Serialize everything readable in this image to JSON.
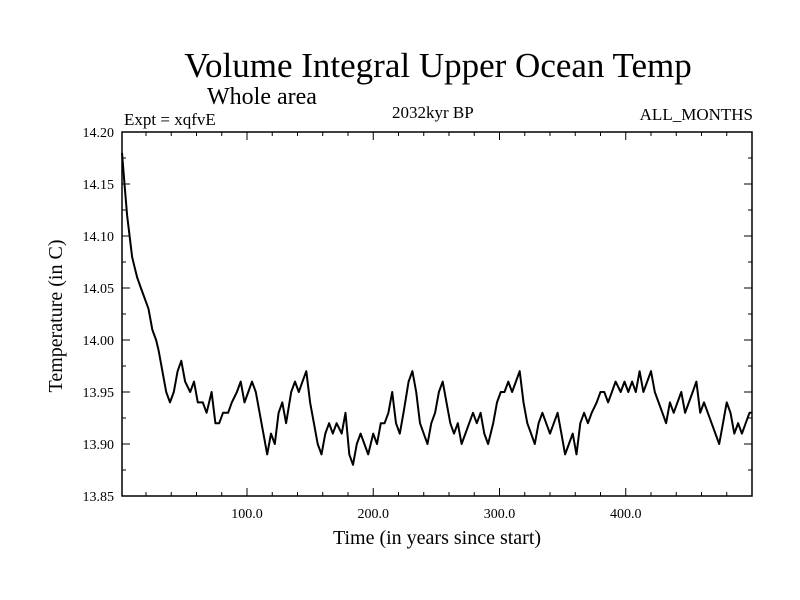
{
  "header": {
    "title": "Volume Integral Upper Ocean Temp",
    "subtitle": "Whole area",
    "experiment": "Expt = xqfvE",
    "period": "2032kyr BP",
    "months": "ALL_MONTHS"
  },
  "chart_data": {
    "type": "line",
    "title": "Volume Integral Upper Ocean Temp",
    "subtitle": "Whole area",
    "xlabel": "Time (in years since start)",
    "ylabel": "Temperature (in C)",
    "xlim": [
      1,
      500
    ],
    "ylim": [
      13.85,
      14.2
    ],
    "xticks": [
      100,
      200,
      300,
      400
    ],
    "xtick_labels": [
      "100.0",
      "200.0",
      "300.0",
      "400.0"
    ],
    "yticks": [
      13.85,
      13.9,
      13.95,
      14.0,
      14.05,
      14.1,
      14.15,
      14.2
    ],
    "ytick_labels": [
      "13.85",
      "13.90",
      "13.95",
      "14.00",
      "14.05",
      "14.10",
      "14.15",
      "14.20"
    ],
    "grid": false,
    "series": [
      {
        "name": "xqfvE",
        "color": "#000000",
        "points": [
          [
            1,
            14.18
          ],
          [
            3,
            14.15
          ],
          [
            5,
            14.12
          ],
          [
            7,
            14.1
          ],
          [
            9,
            14.08
          ],
          [
            11,
            14.07
          ],
          [
            13,
            14.06
          ],
          [
            16,
            14.05
          ],
          [
            19,
            14.04
          ],
          [
            22,
            14.03
          ],
          [
            25,
            14.01
          ],
          [
            28,
            14.0
          ],
          [
            30,
            13.99
          ],
          [
            33,
            13.97
          ],
          [
            36,
            13.95
          ],
          [
            39,
            13.94
          ],
          [
            42,
            13.95
          ],
          [
            45,
            13.97
          ],
          [
            48,
            13.98
          ],
          [
            51,
            13.96
          ],
          [
            55,
            13.95
          ],
          [
            58,
            13.96
          ],
          [
            61,
            13.94
          ],
          [
            65,
            13.94
          ],
          [
            68,
            13.93
          ],
          [
            72,
            13.95
          ],
          [
            75,
            13.92
          ],
          [
            78,
            13.92
          ],
          [
            81,
            13.93
          ],
          [
            85,
            13.93
          ],
          [
            88,
            13.94
          ],
          [
            92,
            13.95
          ],
          [
            95,
            13.96
          ],
          [
            98,
            13.94
          ],
          [
            101,
            13.95
          ],
          [
            104,
            13.96
          ],
          [
            107,
            13.95
          ],
          [
            110,
            13.93
          ],
          [
            113,
            13.91
          ],
          [
            116,
            13.89
          ],
          [
            119,
            13.91
          ],
          [
            122,
            13.9
          ],
          [
            125,
            13.93
          ],
          [
            128,
            13.94
          ],
          [
            131,
            13.92
          ],
          [
            135,
            13.95
          ],
          [
            138,
            13.96
          ],
          [
            141,
            13.95
          ],
          [
            144,
            13.96
          ],
          [
            147,
            13.97
          ],
          [
            150,
            13.94
          ],
          [
            153,
            13.92
          ],
          [
            156,
            13.9
          ],
          [
            159,
            13.89
          ],
          [
            162,
            13.91
          ],
          [
            165,
            13.92
          ],
          [
            168,
            13.91
          ],
          [
            171,
            13.92
          ],
          [
            175,
            13.91
          ],
          [
            178,
            13.93
          ],
          [
            181,
            13.89
          ],
          [
            184,
            13.88
          ],
          [
            187,
            13.9
          ],
          [
            190,
            13.91
          ],
          [
            193,
            13.9
          ],
          [
            196,
            13.89
          ],
          [
            200,
            13.91
          ],
          [
            203,
            13.9
          ],
          [
            206,
            13.92
          ],
          [
            209,
            13.92
          ],
          [
            212,
            13.93
          ],
          [
            215,
            13.95
          ],
          [
            218,
            13.92
          ],
          [
            221,
            13.91
          ],
          [
            224,
            13.93
          ],
          [
            228,
            13.96
          ],
          [
            231,
            13.97
          ],
          [
            234,
            13.95
          ],
          [
            237,
            13.92
          ],
          [
            240,
            13.91
          ],
          [
            243,
            13.9
          ],
          [
            246,
            13.92
          ],
          [
            249,
            13.93
          ],
          [
            252,
            13.95
          ],
          [
            255,
            13.96
          ],
          [
            258,
            13.94
          ],
          [
            261,
            13.92
          ],
          [
            264,
            13.91
          ],
          [
            267,
            13.92
          ],
          [
            270,
            13.9
          ],
          [
            273,
            13.91
          ],
          [
            276,
            13.92
          ],
          [
            279,
            13.93
          ],
          [
            282,
            13.92
          ],
          [
            285,
            13.93
          ],
          [
            288,
            13.91
          ],
          [
            291,
            13.9
          ],
          [
            295,
            13.92
          ],
          [
            298,
            13.94
          ],
          [
            301,
            13.95
          ],
          [
            304,
            13.95
          ],
          [
            307,
            13.96
          ],
          [
            310,
            13.95
          ],
          [
            313,
            13.96
          ],
          [
            316,
            13.97
          ],
          [
            319,
            13.94
          ],
          [
            322,
            13.92
          ],
          [
            325,
            13.91
          ],
          [
            328,
            13.9
          ],
          [
            331,
            13.92
          ],
          [
            334,
            13.93
          ],
          [
            337,
            13.92
          ],
          [
            340,
            13.91
          ],
          [
            343,
            13.92
          ],
          [
            346,
            13.93
          ],
          [
            349,
            13.91
          ],
          [
            352,
            13.89
          ],
          [
            355,
            13.9
          ],
          [
            358,
            13.91
          ],
          [
            361,
            13.89
          ],
          [
            364,
            13.92
          ],
          [
            367,
            13.93
          ],
          [
            370,
            13.92
          ],
          [
            373,
            13.93
          ],
          [
            377,
            13.94
          ],
          [
            380,
            13.95
          ],
          [
            383,
            13.95
          ],
          [
            386,
            13.94
          ],
          [
            389,
            13.95
          ],
          [
            392,
            13.96
          ],
          [
            396,
            13.95
          ],
          [
            399,
            13.96
          ],
          [
            402,
            13.95
          ],
          [
            405,
            13.96
          ],
          [
            408,
            13.95
          ],
          [
            411,
            13.97
          ],
          [
            414,
            13.95
          ],
          [
            417,
            13.96
          ],
          [
            420,
            13.97
          ],
          [
            423,
            13.95
          ],
          [
            426,
            13.94
          ],
          [
            429,
            13.93
          ],
          [
            432,
            13.92
          ],
          [
            435,
            13.94
          ],
          [
            438,
            13.93
          ],
          [
            441,
            13.94
          ],
          [
            444,
            13.95
          ],
          [
            447,
            13.93
          ],
          [
            450,
            13.94
          ],
          [
            453,
            13.95
          ],
          [
            456,
            13.96
          ],
          [
            459,
            13.93
          ],
          [
            462,
            13.94
          ],
          [
            465,
            13.93
          ],
          [
            468,
            13.92
          ],
          [
            471,
            13.91
          ],
          [
            474,
            13.9
          ],
          [
            477,
            13.92
          ],
          [
            480,
            13.94
          ],
          [
            483,
            13.93
          ],
          [
            486,
            13.91
          ],
          [
            489,
            13.92
          ],
          [
            492,
            13.91
          ],
          [
            495,
            13.92
          ],
          [
            498,
            13.93
          ],
          [
            500,
            13.93
          ]
        ]
      }
    ]
  }
}
